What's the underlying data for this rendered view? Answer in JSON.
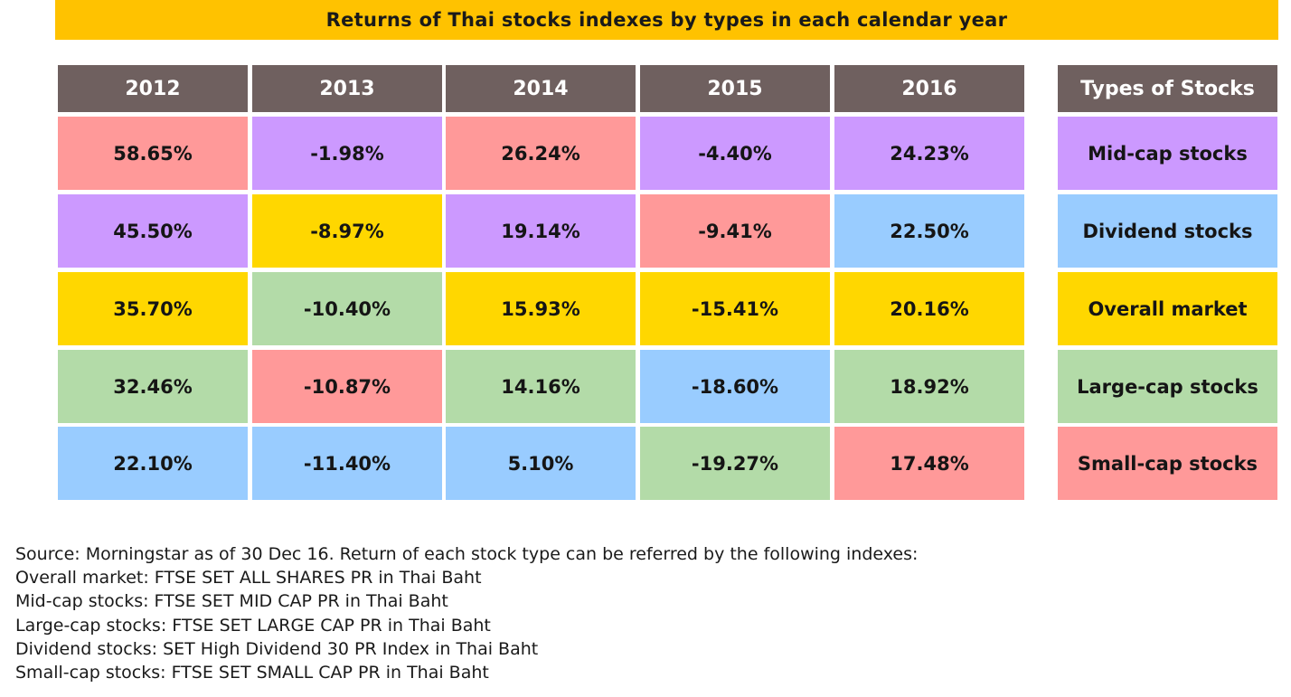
{
  "chart_data": {
    "type": "table",
    "title": "Returns of Thai stocks indexes by types in each calendar year",
    "years": [
      "2012",
      "2013",
      "2014",
      "2015",
      "2016"
    ],
    "types_header": "Types of Stocks",
    "types": [
      "Mid-cap stocks",
      "Dividend stocks",
      "Overall market",
      "Large-cap stocks",
      "Small-cap stocks"
    ],
    "type_colors": {
      "Mid-cap stocks": "#cc99ff",
      "Dividend stocks": "#99ccff",
      "Overall market": "#ffd700",
      "Large-cap stocks": "#b3dba8",
      "Small-cap stocks": "#ff9999"
    },
    "header_color": "#6f605f",
    "banner_color": "#ffc200",
    "columns": [
      {
        "year": "2012",
        "cells": [
          {
            "value": "58.65%",
            "type": "Small-cap stocks"
          },
          {
            "value": "45.50%",
            "type": "Mid-cap stocks"
          },
          {
            "value": "35.70%",
            "type": "Overall market"
          },
          {
            "value": "32.46%",
            "type": "Large-cap stocks"
          },
          {
            "value": "22.10%",
            "type": "Dividend stocks"
          }
        ]
      },
      {
        "year": "2013",
        "cells": [
          {
            "value": "-1.98%",
            "type": "Mid-cap stocks"
          },
          {
            "value": "-8.97%",
            "type": "Overall market"
          },
          {
            "value": "-10.40%",
            "type": "Large-cap stocks"
          },
          {
            "value": "-10.87%",
            "type": "Small-cap stocks"
          },
          {
            "value": "-11.40%",
            "type": "Dividend stocks"
          }
        ]
      },
      {
        "year": "2014",
        "cells": [
          {
            "value": "26.24%",
            "type": "Small-cap stocks"
          },
          {
            "value": "19.14%",
            "type": "Mid-cap stocks"
          },
          {
            "value": "15.93%",
            "type": "Overall market"
          },
          {
            "value": "14.16%",
            "type": "Large-cap stocks"
          },
          {
            "value": "5.10%",
            "type": "Dividend stocks"
          }
        ]
      },
      {
        "year": "2015",
        "cells": [
          {
            "value": "-4.40%",
            "type": "Mid-cap stocks"
          },
          {
            "value": "-9.41%",
            "type": "Small-cap stocks"
          },
          {
            "value": "-15.41%",
            "type": "Overall market"
          },
          {
            "value": "-18.60%",
            "type": "Dividend stocks"
          },
          {
            "value": "-19.27%",
            "type": "Large-cap stocks"
          }
        ]
      },
      {
        "year": "2016",
        "cells": [
          {
            "value": "24.23%",
            "type": "Mid-cap stocks"
          },
          {
            "value": "22.50%",
            "type": "Dividend stocks"
          },
          {
            "value": "20.16%",
            "type": "Overall market"
          },
          {
            "value": "18.92%",
            "type": "Large-cap stocks"
          },
          {
            "value": "17.48%",
            "type": "Small-cap stocks"
          }
        ]
      }
    ]
  },
  "source_lines": [
    "Source: Morningstar as of 30 Dec 16. Return of each stock type can be referred by the following indexes:",
    "Overall market: FTSE SET ALL SHARES PR in Thai Baht",
    "Mid-cap stocks: FTSE SET MID CAP PR in Thai Baht",
    "Large-cap stocks: FTSE SET LARGE CAP PR in Thai Baht",
    "Dividend stocks: SET High Dividend 30 PR Index in Thai Baht",
    "Small-cap stocks: FTSE SET SMALL CAP PR in Thai Baht"
  ]
}
